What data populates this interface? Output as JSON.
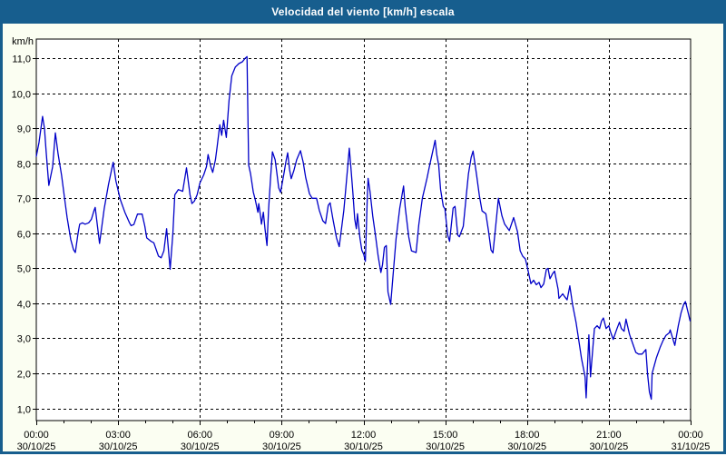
{
  "window": {
    "title": "Velocidad del viento [km/h] escala"
  },
  "colors": {
    "frame_blue": "#175e8e",
    "titlebar_text": "#ffffff",
    "content_bg": "#fbfef2",
    "plot_bg": "#ffffff",
    "grid": "#000000",
    "axis": "#000000",
    "tick_text": "#000000",
    "line": "#0000c8"
  },
  "chart_data": {
    "type": "line",
    "title": "Velocidad del viento [km/h] escala",
    "ylabel": "km/h",
    "xlabel": "",
    "ylim": [
      0.65,
      11.55
    ],
    "xlim_hours": [
      0,
      24
    ],
    "grid": "dashed",
    "legend": "none",
    "y_ticks": [
      {
        "v": 1,
        "label": "1,0"
      },
      {
        "v": 2,
        "label": "2,0"
      },
      {
        "v": 3,
        "label": "3,0"
      },
      {
        "v": 4,
        "label": "4,0"
      },
      {
        "v": 5,
        "label": "5,0"
      },
      {
        "v": 6,
        "label": "6,0"
      },
      {
        "v": 7,
        "label": "7,0"
      },
      {
        "v": 8,
        "label": "8,0"
      },
      {
        "v": 9,
        "label": "9,0"
      },
      {
        "v": 10,
        "label": "10,0"
      },
      {
        "v": 11,
        "label": "11,0"
      }
    ],
    "x_ticks": [
      {
        "h": 0,
        "time": "00:00",
        "date": "30/10/25"
      },
      {
        "h": 3,
        "time": "03:00",
        "date": "30/10/25"
      },
      {
        "h": 6,
        "time": "06:00",
        "date": "30/10/25"
      },
      {
        "h": 9,
        "time": "09:00",
        "date": "30/10/25"
      },
      {
        "h": 12,
        "time": "12:00",
        "date": "30/10/25"
      },
      {
        "h": 15,
        "time": "15:00",
        "date": "30/10/25"
      },
      {
        "h": 18,
        "time": "18:00",
        "date": "30/10/25"
      },
      {
        "h": 21,
        "time": "21:00",
        "date": "30/10/25"
      },
      {
        "h": 24,
        "time": "00:00",
        "date": "31/10/25"
      }
    ],
    "x_minor_tick_every_hours": 1,
    "series": [
      {
        "name": "Velocidad del viento",
        "unit": "km/h",
        "color": "#0000c8",
        "points": [
          [
            0.0,
            8.2
          ],
          [
            0.1,
            8.6
          ],
          [
            0.23,
            9.34
          ],
          [
            0.3,
            9.0
          ],
          [
            0.36,
            8.35
          ],
          [
            0.46,
            7.37
          ],
          [
            0.6,
            7.9
          ],
          [
            0.7,
            8.87
          ],
          [
            0.8,
            8.27
          ],
          [
            0.93,
            7.65
          ],
          [
            1.03,
            7.05
          ],
          [
            1.13,
            6.46
          ],
          [
            1.26,
            5.83
          ],
          [
            1.36,
            5.54
          ],
          [
            1.43,
            5.45
          ],
          [
            1.53,
            6.0
          ],
          [
            1.59,
            6.26
          ],
          [
            1.69,
            6.3
          ],
          [
            1.79,
            6.26
          ],
          [
            1.92,
            6.3
          ],
          [
            2.02,
            6.4
          ],
          [
            2.12,
            6.66
          ],
          [
            2.16,
            6.74
          ],
          [
            2.32,
            5.71
          ],
          [
            2.49,
            6.7
          ],
          [
            2.65,
            7.4
          ],
          [
            2.82,
            8.03
          ],
          [
            2.92,
            7.5
          ],
          [
            3.08,
            6.97
          ],
          [
            3.25,
            6.6
          ],
          [
            3.42,
            6.3
          ],
          [
            3.48,
            6.22
          ],
          [
            3.58,
            6.25
          ],
          [
            3.71,
            6.55
          ],
          [
            3.88,
            6.55
          ],
          [
            3.98,
            6.2
          ],
          [
            4.05,
            5.87
          ],
          [
            4.21,
            5.77
          ],
          [
            4.31,
            5.73
          ],
          [
            4.48,
            5.35
          ],
          [
            4.58,
            5.3
          ],
          [
            4.68,
            5.5
          ],
          [
            4.78,
            6.13
          ],
          [
            4.84,
            5.6
          ],
          [
            4.91,
            4.97
          ],
          [
            5.01,
            6.0
          ],
          [
            5.08,
            7.1
          ],
          [
            5.21,
            7.25
          ],
          [
            5.37,
            7.2
          ],
          [
            5.51,
            7.87
          ],
          [
            5.64,
            7.1
          ],
          [
            5.71,
            6.85
          ],
          [
            5.8,
            6.92
          ],
          [
            5.9,
            7.1
          ],
          [
            6.0,
            7.44
          ],
          [
            6.14,
            7.67
          ],
          [
            6.24,
            7.9
          ],
          [
            6.3,
            8.25
          ],
          [
            6.4,
            7.9
          ],
          [
            6.47,
            7.74
          ],
          [
            6.57,
            8.1
          ],
          [
            6.63,
            8.46
          ],
          [
            6.73,
            9.1
          ],
          [
            6.8,
            8.8
          ],
          [
            6.87,
            9.23
          ],
          [
            6.97,
            8.74
          ],
          [
            7.07,
            9.8
          ],
          [
            7.17,
            10.5
          ],
          [
            7.3,
            10.75
          ],
          [
            7.43,
            10.85
          ],
          [
            7.56,
            10.9
          ],
          [
            7.66,
            11.0
          ],
          [
            7.73,
            11.05
          ],
          [
            7.79,
            7.95
          ],
          [
            7.86,
            7.7
          ],
          [
            7.96,
            7.18
          ],
          [
            8.03,
            6.97
          ],
          [
            8.13,
            6.6
          ],
          [
            8.16,
            6.85
          ],
          [
            8.23,
            6.47
          ],
          [
            8.26,
            6.26
          ],
          [
            8.33,
            6.6
          ],
          [
            8.39,
            6.13
          ],
          [
            8.46,
            5.65
          ],
          [
            8.52,
            6.7
          ],
          [
            8.59,
            7.56
          ],
          [
            8.66,
            8.33
          ],
          [
            8.76,
            8.1
          ],
          [
            8.82,
            7.74
          ],
          [
            8.89,
            7.3
          ],
          [
            8.96,
            7.17
          ],
          [
            9.09,
            7.74
          ],
          [
            9.16,
            8.07
          ],
          [
            9.22,
            8.3
          ],
          [
            9.29,
            7.82
          ],
          [
            9.35,
            7.56
          ],
          [
            9.45,
            7.8
          ],
          [
            9.55,
            8.1
          ],
          [
            9.69,
            8.36
          ],
          [
            9.79,
            8.03
          ],
          [
            9.88,
            7.6
          ],
          [
            10.02,
            7.13
          ],
          [
            10.12,
            7.0
          ],
          [
            10.28,
            7.0
          ],
          [
            10.38,
            6.66
          ],
          [
            10.51,
            6.36
          ],
          [
            10.61,
            6.28
          ],
          [
            10.71,
            6.8
          ],
          [
            10.78,
            6.87
          ],
          [
            10.88,
            6.4
          ],
          [
            11.01,
            5.87
          ],
          [
            11.11,
            5.62
          ],
          [
            11.21,
            6.23
          ],
          [
            11.28,
            6.66
          ],
          [
            11.34,
            7.18
          ],
          [
            11.41,
            7.8
          ],
          [
            11.48,
            8.43
          ],
          [
            11.54,
            7.87
          ],
          [
            11.61,
            7.18
          ],
          [
            11.68,
            6.4
          ],
          [
            11.74,
            6.13
          ],
          [
            11.78,
            6.56
          ],
          [
            11.87,
            5.87
          ],
          [
            11.94,
            5.52
          ],
          [
            12.01,
            5.4
          ],
          [
            12.07,
            5.2
          ],
          [
            12.14,
            7.0
          ],
          [
            12.17,
            7.57
          ],
          [
            12.24,
            7.2
          ],
          [
            12.34,
            6.5
          ],
          [
            12.44,
            5.95
          ],
          [
            12.54,
            5.35
          ],
          [
            12.64,
            4.88
          ],
          [
            12.7,
            5.1
          ],
          [
            12.77,
            5.6
          ],
          [
            12.84,
            5.65
          ],
          [
            12.9,
            4.33
          ],
          [
            13.0,
            3.97
          ],
          [
            13.1,
            4.92
          ],
          [
            13.2,
            5.86
          ],
          [
            13.33,
            6.72
          ],
          [
            13.47,
            7.35
          ],
          [
            13.53,
            6.75
          ],
          [
            13.66,
            5.9
          ],
          [
            13.76,
            5.5
          ],
          [
            13.93,
            5.45
          ],
          [
            14.03,
            6.25
          ],
          [
            14.16,
            7.0
          ],
          [
            14.33,
            7.57
          ],
          [
            14.43,
            7.95
          ],
          [
            14.53,
            8.3
          ],
          [
            14.63,
            8.66
          ],
          [
            14.69,
            8.25
          ],
          [
            14.76,
            7.95
          ],
          [
            14.83,
            7.25
          ],
          [
            14.93,
            6.77
          ],
          [
            14.99,
            6.7
          ],
          [
            15.09,
            5.95
          ],
          [
            15.16,
            5.77
          ],
          [
            15.29,
            6.72
          ],
          [
            15.36,
            6.77
          ],
          [
            15.46,
            5.95
          ],
          [
            15.52,
            5.9
          ],
          [
            15.66,
            6.2
          ],
          [
            15.76,
            7.0
          ],
          [
            15.85,
            7.7
          ],
          [
            15.95,
            8.17
          ],
          [
            16.02,
            8.35
          ],
          [
            16.15,
            7.66
          ],
          [
            16.25,
            7.08
          ],
          [
            16.35,
            6.64
          ],
          [
            16.49,
            6.56
          ],
          [
            16.58,
            6.1
          ],
          [
            16.68,
            5.52
          ],
          [
            16.75,
            5.44
          ],
          [
            16.85,
            6.2
          ],
          [
            16.95,
            7.0
          ],
          [
            17.08,
            6.5
          ],
          [
            17.18,
            6.26
          ],
          [
            17.35,
            6.08
          ],
          [
            17.51,
            6.45
          ],
          [
            17.65,
            6.05
          ],
          [
            17.75,
            5.5
          ],
          [
            17.84,
            5.35
          ],
          [
            17.94,
            5.27
          ],
          [
            18.01,
            5.03
          ],
          [
            18.14,
            4.56
          ],
          [
            18.24,
            4.66
          ],
          [
            18.34,
            4.53
          ],
          [
            18.44,
            4.6
          ],
          [
            18.51,
            4.45
          ],
          [
            18.61,
            4.55
          ],
          [
            18.71,
            4.97
          ],
          [
            18.77,
            5.0
          ],
          [
            18.84,
            4.7
          ],
          [
            18.94,
            4.85
          ],
          [
            19.01,
            4.92
          ],
          [
            19.14,
            4.4
          ],
          [
            19.17,
            4.14
          ],
          [
            19.31,
            4.27
          ],
          [
            19.37,
            4.2
          ],
          [
            19.47,
            4.1
          ],
          [
            19.57,
            4.5
          ],
          [
            19.67,
            3.97
          ],
          [
            19.8,
            3.45
          ],
          [
            19.9,
            2.94
          ],
          [
            20.0,
            2.42
          ],
          [
            20.13,
            1.9
          ],
          [
            20.17,
            1.3
          ],
          [
            20.27,
            3.1
          ],
          [
            20.33,
            1.9
          ],
          [
            20.47,
            3.28
          ],
          [
            20.57,
            3.36
          ],
          [
            20.66,
            3.28
          ],
          [
            20.73,
            3.49
          ],
          [
            20.8,
            3.58
          ],
          [
            20.9,
            3.28
          ],
          [
            21.0,
            3.36
          ],
          [
            21.06,
            3.19
          ],
          [
            21.16,
            2.97
          ],
          [
            21.3,
            3.28
          ],
          [
            21.39,
            3.46
          ],
          [
            21.46,
            3.28
          ],
          [
            21.56,
            3.2
          ],
          [
            21.63,
            3.55
          ],
          [
            21.76,
            3.11
          ],
          [
            21.89,
            2.82
          ],
          [
            21.99,
            2.6
          ],
          [
            22.09,
            2.55
          ],
          [
            22.22,
            2.55
          ],
          [
            22.36,
            2.68
          ],
          [
            22.42,
            2.0
          ],
          [
            22.49,
            1.47
          ],
          [
            22.56,
            1.26
          ],
          [
            22.59,
            2.0
          ],
          [
            22.65,
            2.17
          ],
          [
            22.75,
            2.45
          ],
          [
            22.89,
            2.76
          ],
          [
            22.99,
            2.94
          ],
          [
            23.09,
            3.08
          ],
          [
            23.22,
            3.16
          ],
          [
            23.25,
            3.24
          ],
          [
            23.38,
            2.9
          ],
          [
            23.42,
            2.8
          ],
          [
            23.55,
            3.37
          ],
          [
            23.65,
            3.73
          ],
          [
            23.75,
            3.98
          ],
          [
            23.81,
            4.05
          ],
          [
            23.91,
            3.73
          ],
          [
            23.98,
            3.5
          ]
        ]
      }
    ]
  }
}
